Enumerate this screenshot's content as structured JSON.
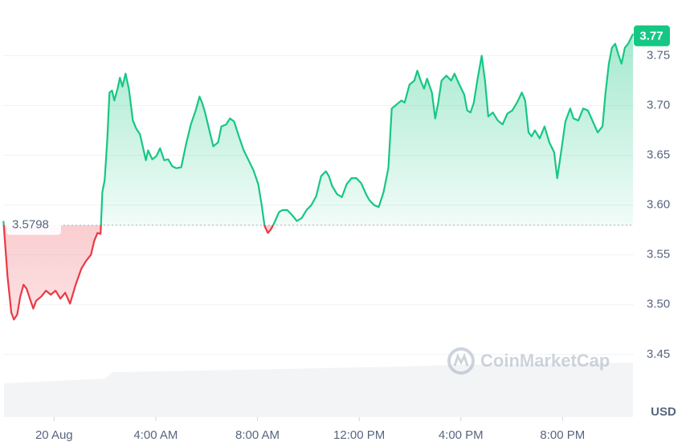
{
  "chart_data": {
    "type": "line",
    "x": [
      -1.99,
      -1.83,
      -1.68,
      -1.58,
      -1.45,
      -1.33,
      -1.2,
      -1.08,
      -0.95,
      -0.82,
      -0.7,
      -0.51,
      -0.32,
      -0.13,
      0.06,
      0.25,
      0.44,
      0.63,
      0.85,
      1.07,
      1.26,
      1.45,
      1.58,
      1.71,
      1.83,
      1.9,
      1.99,
      2.09,
      2.18,
      2.28,
      2.37,
      2.5,
      2.59,
      2.69,
      2.81,
      2.94,
      3.1,
      3.23,
      3.38,
      3.61,
      3.7,
      3.86,
      4.02,
      4.17,
      4.33,
      4.49,
      4.65,
      4.81,
      5.0,
      5.19,
      5.38,
      5.57,
      5.72,
      5.82,
      5.94,
      6.13,
      6.26,
      6.45,
      6.58,
      6.77,
      6.92,
      7.08,
      7.27,
      7.46,
      7.65,
      7.84,
      8.03,
      8.16,
      8.28,
      8.41,
      8.54,
      8.66,
      8.85,
      8.98,
      9.17,
      9.36,
      9.55,
      9.74,
      9.93,
      10.12,
      10.31,
      10.5,
      10.69,
      10.81,
      10.94,
      11.13,
      11.32,
      11.51,
      11.7,
      11.89,
      12.08,
      12.27,
      12.4,
      12.59,
      12.77,
      12.96,
      13.15,
      13.28,
      13.47,
      13.66,
      13.79,
      13.98,
      14.17,
      14.29,
      14.42,
      14.55,
      14.67,
      14.86,
      14.99,
      15.11,
      15.24,
      15.43,
      15.62,
      15.75,
      15.94,
      16.13,
      16.25,
      16.38,
      16.51,
      16.66,
      16.82,
      16.95,
      17.08,
      17.26,
      17.45,
      17.64,
      17.83,
      18.02,
      18.21,
      18.4,
      18.53,
      18.66,
      18.78,
      18.91,
      19.1,
      19.29,
      19.48,
      19.67,
      19.79,
      19.92,
      20.11,
      20.3,
      20.43,
      20.62,
      20.81,
      21.0,
      21.19,
      21.38,
      21.57,
      21.69,
      21.82,
      21.94,
      22.07,
      22.2,
      22.32,
      22.45,
      22.58,
      22.77
    ],
    "series": [
      {
        "name": "Price",
        "color": "#16c784",
        "values": [
          3.584,
          3.528,
          3.492,
          3.485,
          3.49,
          3.508,
          3.52,
          3.516,
          3.506,
          3.496,
          3.504,
          3.508,
          3.514,
          3.51,
          3.514,
          3.506,
          3.512,
          3.501,
          3.52,
          3.536,
          3.544,
          3.55,
          3.564,
          3.572,
          3.571,
          3.613,
          3.625,
          3.665,
          3.713,
          3.715,
          3.705,
          3.717,
          3.728,
          3.719,
          3.732,
          3.717,
          3.685,
          3.677,
          3.671,
          3.645,
          3.655,
          3.646,
          3.649,
          3.657,
          3.645,
          3.646,
          3.639,
          3.637,
          3.638,
          3.661,
          3.681,
          3.695,
          3.709,
          3.703,
          3.693,
          3.673,
          3.659,
          3.663,
          3.679,
          3.681,
          3.687,
          3.684,
          3.669,
          3.655,
          3.645,
          3.635,
          3.621,
          3.601,
          3.579,
          3.572,
          3.576,
          3.582,
          3.593,
          3.595,
          3.595,
          3.59,
          3.584,
          3.587,
          3.595,
          3.6,
          3.609,
          3.629,
          3.634,
          3.629,
          3.619,
          3.611,
          3.608,
          3.621,
          3.627,
          3.627,
          3.622,
          3.611,
          3.605,
          3.6,
          3.598,
          3.613,
          3.637,
          3.697,
          3.701,
          3.705,
          3.703,
          3.721,
          3.725,
          3.735,
          3.725,
          3.717,
          3.727,
          3.713,
          3.687,
          3.703,
          3.725,
          3.73,
          3.725,
          3.732,
          3.721,
          3.711,
          3.695,
          3.693,
          3.703,
          3.727,
          3.75,
          3.725,
          3.689,
          3.693,
          3.685,
          3.681,
          3.692,
          3.695,
          3.703,
          3.713,
          3.705,
          3.673,
          3.669,
          3.675,
          3.667,
          3.679,
          3.663,
          3.653,
          3.627,
          3.649,
          3.684,
          3.697,
          3.687,
          3.685,
          3.697,
          3.695,
          3.684,
          3.673,
          3.679,
          3.713,
          3.742,
          3.758,
          3.762,
          3.751,
          3.742,
          3.758,
          3.762,
          3.772
        ]
      }
    ],
    "down_color": "#ea3943",
    "reference_value": 3.5798,
    "current_price": 3.77,
    "xlim": [
      -2,
      22.8
    ],
    "xticks": [
      {
        "value": 0,
        "label": "20 Aug"
      },
      {
        "value": 4,
        "label": "4:00 AM"
      },
      {
        "value": 8,
        "label": "8:00 AM"
      },
      {
        "value": 12,
        "label": "12:00 PM"
      },
      {
        "value": 16,
        "label": "4:00 PM"
      },
      {
        "value": 20,
        "label": "8:00 PM"
      }
    ],
    "ylim": [
      3.387,
      3.806
    ],
    "yticks": [
      3.45,
      {
        "value": 3.5,
        "label": "3.50"
      },
      3.55,
      {
        "value": 3.6,
        "label": "3.60"
      },
      3.65,
      {
        "value": 3.7,
        "label": "3.70"
      },
      3.75
    ],
    "grid": true,
    "y_unit": "USD",
    "watermark": "CoinMarketCap"
  }
}
